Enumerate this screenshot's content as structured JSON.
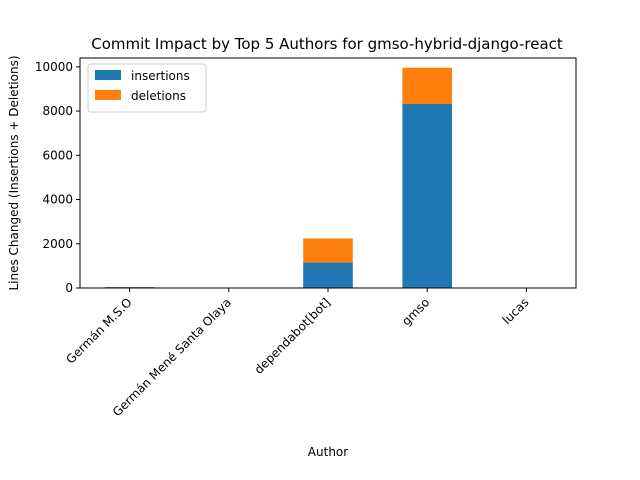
{
  "chart_data": {
    "type": "bar",
    "stacked": true,
    "title": "Commit Impact by Top 5 Authors for gmso-hybrid-django-react",
    "xlabel": "Author",
    "ylabel": "Lines Changed (Insertions + Deletions)",
    "categories": [
      "Germán M.S.O",
      "Germán Mené Santa Olaya",
      "dependabot[bot]",
      "gmso",
      "lucas"
    ],
    "series": [
      {
        "name": "insertions",
        "color": "#1f77b4",
        "values": [
          40,
          0,
          1150,
          8320,
          0
        ]
      },
      {
        "name": "deletions",
        "color": "#ff7f0e",
        "values": [
          10,
          0,
          1090,
          1640,
          0
        ]
      }
    ],
    "ylim": [
      0,
      10400
    ],
    "yticks": [
      0,
      2000,
      4000,
      6000,
      8000,
      10000
    ],
    "legend_position": "top-left",
    "grid": false
  }
}
